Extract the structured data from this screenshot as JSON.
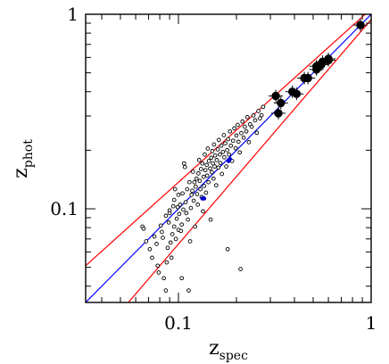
{
  "chart_data": {
    "type": "scatter",
    "title": "",
    "xlabel": {
      "base": "z",
      "sub": "spec"
    },
    "ylabel": {
      "base": "z",
      "sub": "phot"
    },
    "xscale": "log",
    "yscale": "log",
    "xlim": [
      0.033,
      1.0
    ],
    "ylim": [
      0.033,
      1.0
    ],
    "xticks": [
      {
        "value": 0.1,
        "label": "0.1"
      },
      {
        "value": 1.0,
        "label": "1"
      }
    ],
    "yticks": [
      {
        "value": 0.1,
        "label": "0.1"
      },
      {
        "value": 1.0,
        "label": "1"
      }
    ],
    "grid": false,
    "legend": "none",
    "colors": {
      "one_to_one": "#0000ff",
      "envelope": "#ff0000",
      "points": "#000000",
      "blue_points": "#0000cc"
    },
    "lines": [
      {
        "name": "",
        "color": "#0000ff",
        "x": [
          0.033,
          1.0
        ],
        "y": [
          0.033,
          1.0
        ]
      },
      {
        "name": "",
        "color": "#ff0000",
        "x": [
          0.033,
          1.0
        ],
        "y": [
          0.051,
          1.065
        ]
      },
      {
        "name": "",
        "color": "#ff0000",
        "x": [
          0.055,
          1.0
        ],
        "y": [
          0.033,
          0.94
        ]
      }
    ],
    "small_points": [
      [
        0.065,
        0.081
      ],
      [
        0.066,
        0.079
      ],
      [
        0.068,
        0.068
      ],
      [
        0.071,
        0.062
      ],
      [
        0.073,
        0.056
      ],
      [
        0.075,
        0.072
      ],
      [
        0.077,
        0.066
      ],
      [
        0.078,
        0.051
      ],
      [
        0.079,
        0.047
      ],
      [
        0.081,
        0.082
      ],
      [
        0.082,
        0.076
      ],
      [
        0.083,
        0.071
      ],
      [
        0.084,
        0.044
      ],
      [
        0.086,
        0.092
      ],
      [
        0.086,
        0.038
      ],
      [
        0.087,
        0.053
      ],
      [
        0.088,
        0.063
      ],
      [
        0.089,
        0.085
      ],
      [
        0.09,
        0.098
      ],
      [
        0.09,
        0.095
      ],
      [
        0.091,
        0.067
      ],
      [
        0.092,
        0.056
      ],
      [
        0.093,
        0.074
      ],
      [
        0.094,
        0.103
      ],
      [
        0.095,
        0.081
      ],
      [
        0.095,
        0.111
      ],
      [
        0.096,
        0.126
      ],
      [
        0.097,
        0.07
      ],
      [
        0.098,
        0.089
      ],
      [
        0.099,
        0.102
      ],
      [
        0.1,
        0.078
      ],
      [
        0.1,
        0.118
      ],
      [
        0.101,
        0.094
      ],
      [
        0.102,
        0.105
      ],
      [
        0.103,
        0.077
      ],
      [
        0.104,
        0.044
      ],
      [
        0.104,
        0.083
      ],
      [
        0.105,
        0.12
      ],
      [
        0.106,
        0.099
      ],
      [
        0.107,
        0.171
      ],
      [
        0.108,
        0.164
      ],
      [
        0.109,
        0.108
      ],
      [
        0.11,
        0.095
      ],
      [
        0.111,
        0.126
      ],
      [
        0.112,
        0.088
      ],
      [
        0.113,
        0.038
      ],
      [
        0.114,
        0.137
      ],
      [
        0.115,
        0.068
      ],
      [
        0.116,
        0.101
      ],
      [
        0.117,
        0.118
      ],
      [
        0.118,
        0.124
      ],
      [
        0.119,
        0.155
      ],
      [
        0.12,
        0.11
      ],
      [
        0.121,
        0.137
      ],
      [
        0.122,
        0.081
      ],
      [
        0.123,
        0.13
      ],
      [
        0.124,
        0.143
      ],
      [
        0.125,
        0.119
      ],
      [
        0.126,
        0.105
      ],
      [
        0.127,
        0.152
      ],
      [
        0.128,
        0.178
      ],
      [
        0.129,
        0.139
      ],
      [
        0.13,
        0.126
      ],
      [
        0.131,
        0.16
      ],
      [
        0.132,
        0.115
      ],
      [
        0.133,
        0.171
      ],
      [
        0.134,
        0.097
      ],
      [
        0.135,
        0.146
      ],
      [
        0.136,
        0.131
      ],
      [
        0.137,
        0.19
      ],
      [
        0.138,
        0.158
      ],
      [
        0.139,
        0.121
      ],
      [
        0.14,
        0.168
      ],
      [
        0.141,
        0.148
      ],
      [
        0.142,
        0.204
      ],
      [
        0.143,
        0.137
      ],
      [
        0.144,
        0.176
      ],
      [
        0.146,
        0.161
      ],
      [
        0.147,
        0.088
      ],
      [
        0.148,
        0.183
      ],
      [
        0.149,
        0.154
      ],
      [
        0.15,
        0.198
      ],
      [
        0.151,
        0.171
      ],
      [
        0.152,
        0.143
      ],
      [
        0.153,
        0.214
      ],
      [
        0.154,
        0.165
      ],
      [
        0.155,
        0.188
      ],
      [
        0.157,
        0.132
      ],
      [
        0.158,
        0.178
      ],
      [
        0.16,
        0.202
      ],
      [
        0.161,
        0.163
      ],
      [
        0.162,
        0.226
      ],
      [
        0.164,
        0.19
      ],
      [
        0.165,
        0.172
      ],
      [
        0.167,
        0.211
      ],
      [
        0.168,
        0.151
      ],
      [
        0.17,
        0.196
      ],
      [
        0.172,
        0.239
      ],
      [
        0.173,
        0.184
      ],
      [
        0.175,
        0.217
      ],
      [
        0.177,
        0.165
      ],
      [
        0.179,
        0.2
      ],
      [
        0.18,
        0.062
      ],
      [
        0.181,
        0.228
      ],
      [
        0.183,
        0.19
      ],
      [
        0.185,
        0.25
      ],
      [
        0.187,
        0.211
      ],
      [
        0.19,
        0.176
      ],
      [
        0.192,
        0.224
      ],
      [
        0.195,
        0.259
      ],
      [
        0.198,
        0.205
      ],
      [
        0.2,
        0.238
      ],
      [
        0.203,
        0.27
      ],
      [
        0.205,
        0.221
      ],
      [
        0.208,
        0.195
      ],
      [
        0.21,
        0.049
      ],
      [
        0.212,
        0.245
      ],
      [
        0.215,
        0.281
      ],
      [
        0.218,
        0.232
      ],
      [
        0.221,
        0.264
      ],
      [
        0.225,
        0.25
      ],
      [
        0.228,
        0.296
      ],
      [
        0.232,
        0.22
      ],
      [
        0.235,
        0.272
      ],
      [
        0.24,
        0.264
      ],
      [
        0.245,
        0.302
      ],
      [
        0.25,
        0.285
      ],
      [
        0.255,
        0.246
      ],
      [
        0.26,
        0.318
      ],
      [
        0.265,
        0.292
      ],
      [
        0.27,
        0.303
      ],
      [
        0.275,
        0.334
      ]
    ],
    "big_points": [
      [
        0.32,
        0.38
      ],
      [
        0.34,
        0.35
      ],
      [
        0.33,
        0.31
      ],
      [
        0.39,
        0.4
      ],
      [
        0.41,
        0.39
      ],
      [
        0.45,
        0.47
      ],
      [
        0.47,
        0.47
      ],
      [
        0.52,
        0.54
      ],
      [
        0.55,
        0.55
      ],
      [
        0.52,
        0.52
      ],
      [
        0.56,
        0.57
      ],
      [
        0.6,
        0.58
      ],
      [
        0.6,
        0.59
      ],
      [
        0.88,
        0.88
      ]
    ],
    "blue_points": [
      [
        0.136,
        0.113
      ],
      [
        0.133,
        0.113
      ],
      [
        0.182,
        0.176
      ],
      [
        0.185,
        0.18
      ]
    ]
  }
}
